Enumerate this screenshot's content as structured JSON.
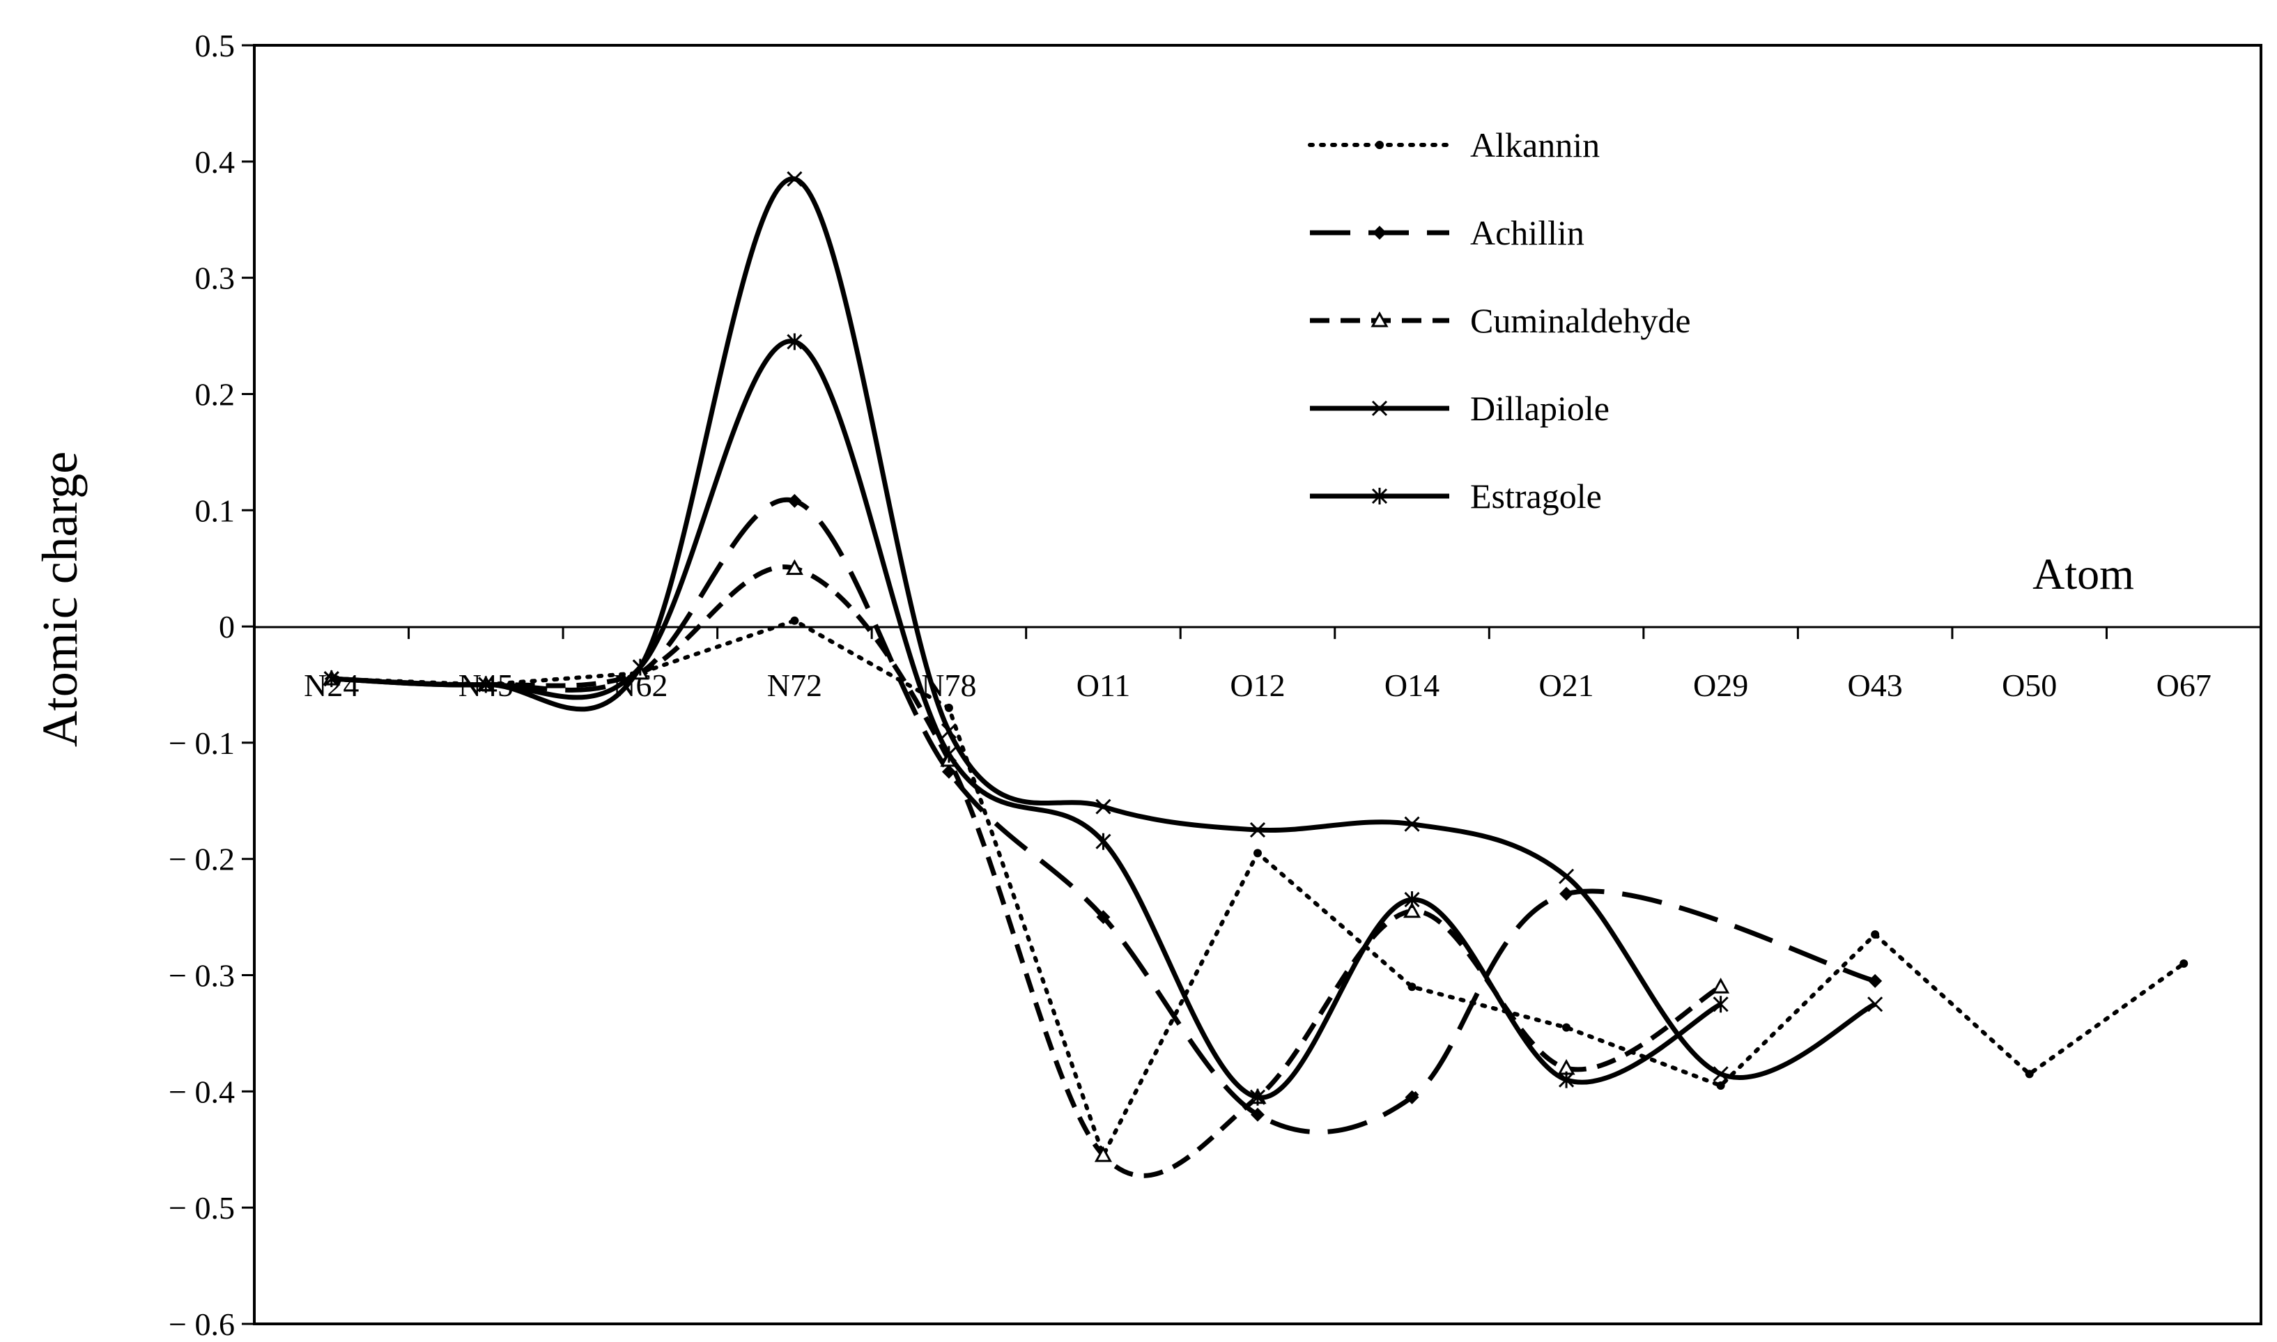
{
  "chart_data": {
    "type": "line",
    "title": "",
    "xlabel": "Atom",
    "ylabel": "Atomic charge",
    "ylim": [
      -0.6,
      0.5
    ],
    "yticks": [
      {
        "value": 0.5,
        "label": "0.5"
      },
      {
        "value": 0.4,
        "label": "0.4"
      },
      {
        "value": 0.3,
        "label": "0.3"
      },
      {
        "value": 0.2,
        "label": "0.2"
      },
      {
        "value": 0.1,
        "label": "0.1"
      },
      {
        "value": 0,
        "label": "0"
      },
      {
        "value": -0.1,
        "label": "− 0.1"
      },
      {
        "value": -0.2,
        "label": "− 0.2"
      },
      {
        "value": -0.3,
        "label": "− 0.3"
      },
      {
        "value": -0.4,
        "label": "− 0.4"
      },
      {
        "value": -0.5,
        "label": "− 0.5"
      },
      {
        "value": -0.6,
        "label": "− 0.6"
      }
    ],
    "categories": [
      "N24",
      "N45",
      "N62",
      "N72",
      "N78",
      "O11",
      "O12",
      "O14",
      "O21",
      "O29",
      "O43",
      "O50",
      "O67"
    ],
    "legend_position": "top-right",
    "grid": false,
    "series": [
      {
        "name": "Alkannin",
        "style": "dotted",
        "marker": "dot",
        "smooth": false,
        "values": [
          -0.045,
          -0.05,
          -0.04,
          0.005,
          -0.07,
          -0.455,
          -0.195,
          -0.31,
          -0.345,
          -0.395,
          -0.265,
          -0.385,
          -0.29
        ]
      },
      {
        "name": "Achillin",
        "style": "longdash",
        "marker": "diamond",
        "smooth": true,
        "values": [
          -0.045,
          -0.05,
          -0.04,
          0.108,
          -0.125,
          -0.25,
          -0.42,
          -0.405,
          -0.23,
          null,
          -0.305,
          null,
          null
        ]
      },
      {
        "name": "Cuminaldehyde",
        "style": "shortdash",
        "marker": "triangle",
        "smooth": true,
        "values": [
          -0.045,
          -0.05,
          -0.04,
          0.05,
          -0.115,
          -0.455,
          -0.405,
          -0.245,
          -0.38,
          -0.31,
          null,
          null,
          null
        ]
      },
      {
        "name": "Dillapiole",
        "style": "solid",
        "marker": "x",
        "smooth": true,
        "values": [
          -0.045,
          -0.05,
          -0.035,
          0.385,
          -0.09,
          -0.155,
          -0.175,
          -0.17,
          -0.215,
          -0.385,
          -0.325,
          null,
          null
        ]
      },
      {
        "name": "Estragole",
        "style": "dashdot",
        "marker": "star",
        "smooth": true,
        "values": [
          -0.045,
          -0.05,
          -0.035,
          0.245,
          -0.11,
          -0.185,
          -0.405,
          -0.235,
          -0.39,
          -0.325,
          null,
          null,
          null
        ]
      }
    ]
  }
}
